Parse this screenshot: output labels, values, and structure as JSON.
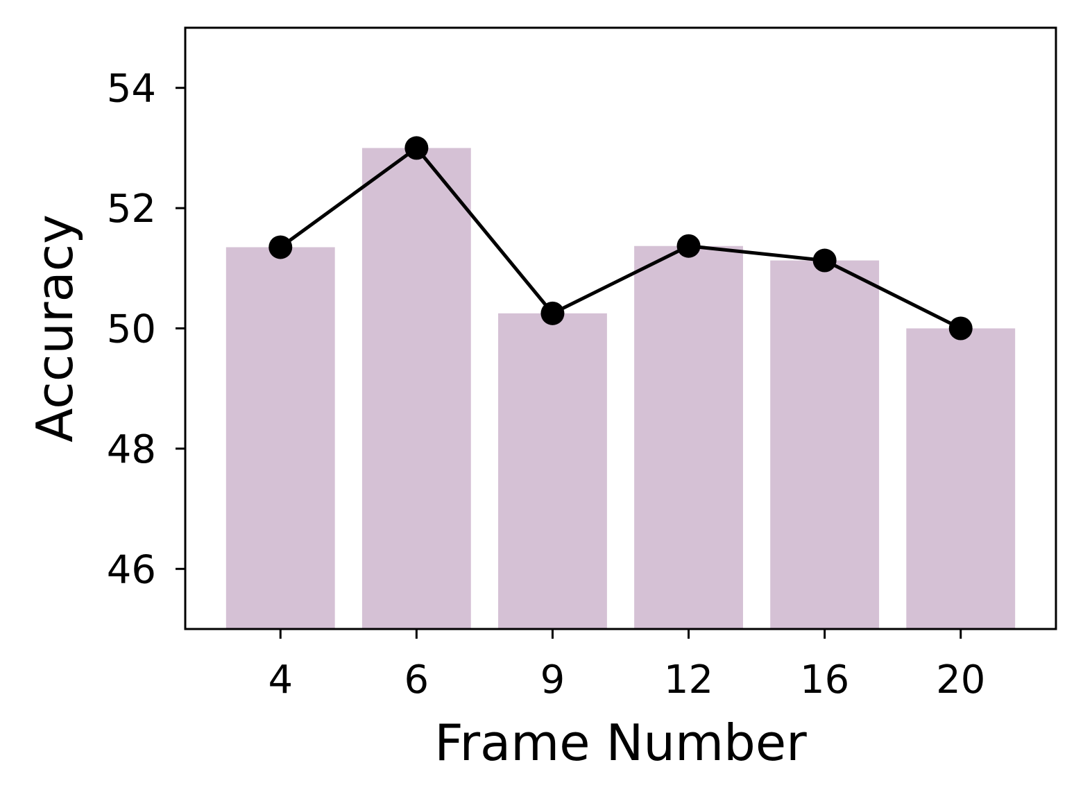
{
  "chart_data": {
    "type": "bar",
    "categories": [
      "4",
      "6",
      "9",
      "12",
      "16",
      "20"
    ],
    "values": [
      51.35,
      53.0,
      50.25,
      51.37,
      51.13,
      50.0
    ],
    "line_values": [
      51.35,
      53.0,
      50.25,
      51.37,
      51.13,
      50.0
    ],
    "xlabel": "Frame Number",
    "ylabel": "Accuracy",
    "ylim": [
      45,
      55
    ],
    "yticks": [
      46,
      48,
      50,
      52,
      54
    ],
    "grid": false,
    "colors": {
      "bar": "#d5c1d5",
      "line": "#000000",
      "marker": "#000000",
      "axis": "#000000"
    }
  }
}
